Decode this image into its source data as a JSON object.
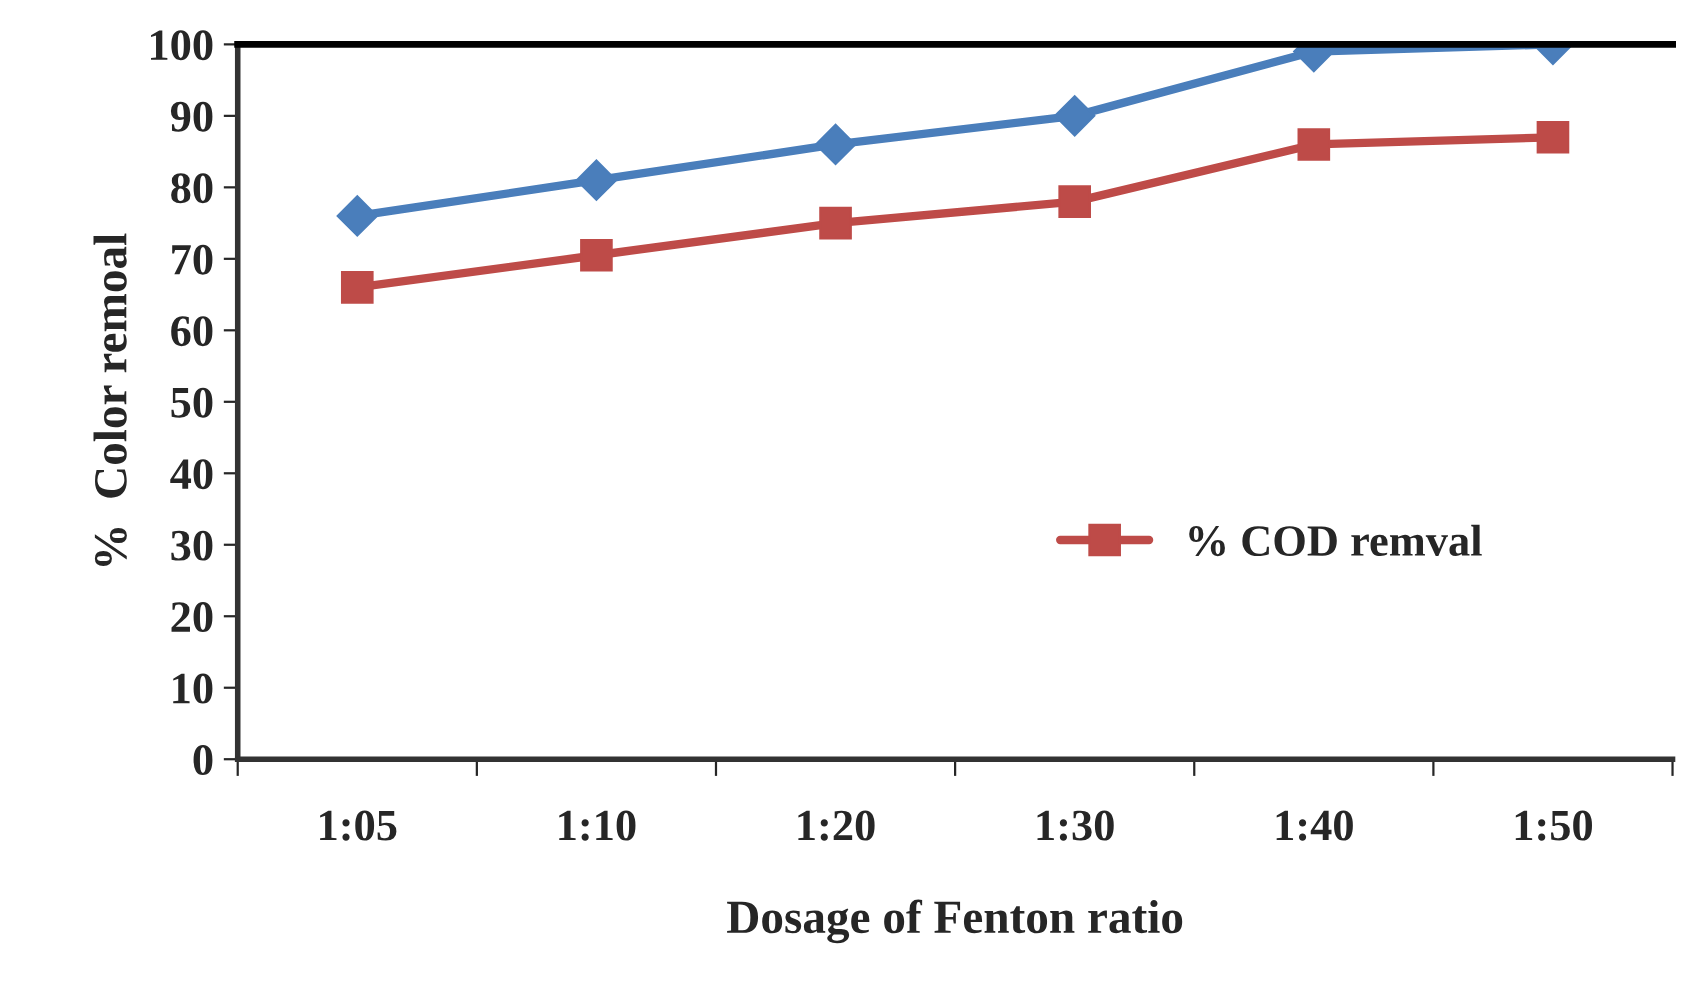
{
  "chart_data": {
    "type": "line",
    "xlabel": "Dosage of Fenton ratio",
    "ylabel": "%  Color remoal",
    "categories": [
      "1:05",
      "1:10",
      "1:20",
      "1:30",
      "1:40",
      "1:50"
    ],
    "series": [
      {
        "color": "#4a7ebb",
        "marker": "diamond",
        "values": [
          76,
          81,
          86,
          90,
          99,
          100
        ]
      },
      {
        "name": "% COD remval",
        "color": "#be4b48",
        "marker": "square",
        "values": [
          66,
          70.5,
          75,
          78,
          86,
          87
        ]
      }
    ],
    "ylim": [
      0,
      100
    ],
    "yticks": [
      0,
      10,
      20,
      30,
      40,
      50,
      60,
      70,
      80,
      90,
      100
    ],
    "grid": false,
    "legend": "center right",
    "line_style": "solid"
  }
}
